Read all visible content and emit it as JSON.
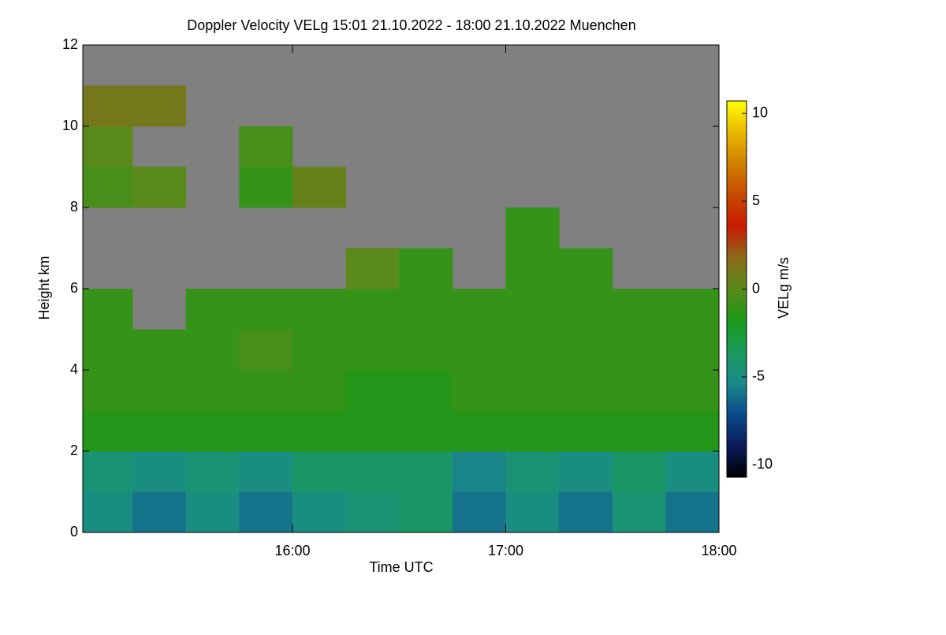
{
  "chart_data": {
    "type": "heatmap",
    "title": "Doppler Velocity VELg   15:01 21.10.2022 - 18:00 21.10.2022 Muenchen",
    "xlabel": "Time UTC",
    "ylabel": "Height km",
    "colorbar_label": "VELg m/s",
    "xlim": [
      15.0167,
      18.0
    ],
    "xticks": [
      {
        "value": 16,
        "label": "16:00"
      },
      {
        "value": 17,
        "label": "17:00"
      },
      {
        "value": 18,
        "label": "18:00"
      }
    ],
    "ylim": [
      0,
      12
    ],
    "yticks": [
      0,
      2,
      4,
      6,
      8,
      10,
      12
    ],
    "clim": [
      -10.7,
      10.7
    ],
    "cticks": [
      -10,
      -5,
      0,
      5,
      10
    ],
    "colormap": [
      "#000000",
      "#0a1a5a",
      "#0a4a8a",
      "#1a8a8a",
      "#1a9a5a",
      "#1a9a1a",
      "#5a8a1a",
      "#8a6a1a",
      "#c81a00",
      "#c84a00",
      "#d08000",
      "#e8b800",
      "#ffff00"
    ],
    "missing_color": "#808080",
    "xbins": [
      15.0167,
      15.25,
      15.5,
      15.75,
      16.0,
      16.25,
      16.5,
      16.75,
      17.0,
      17.25,
      17.5,
      17.75,
      18.0
    ],
    "ybins": [
      0,
      1,
      2,
      3,
      4,
      5,
      6,
      7,
      8,
      9,
      10,
      11,
      12
    ],
    "values": [
      [
        -5,
        -6,
        -5,
        -6,
        -5,
        -4.5,
        -4,
        -6,
        -5,
        -6,
        -4.5,
        -6
      ],
      [
        -4.5,
        -5,
        -4.5,
        -5,
        -4,
        -4,
        -4,
        -5.5,
        -4.5,
        -5,
        -4,
        -5
      ],
      [
        -1.5,
        -1.5,
        -1.5,
        -1.5,
        -1.5,
        -1.5,
        -1.5,
        -1.5,
        -1.5,
        -1.5,
        -1.5,
        -1.5
      ],
      [
        -1,
        -1,
        -1,
        -1,
        -1,
        -1.5,
        -1.5,
        -1,
        -1,
        -1,
        -1,
        -1
      ],
      [
        -1,
        -1,
        -1,
        -0.5,
        -1,
        -1,
        -1,
        -1,
        -1,
        -1,
        -1,
        -1
      ],
      [
        -1,
        null,
        -1,
        -1,
        -1,
        -1,
        -1,
        -1,
        -1,
        -1,
        -1,
        -1
      ],
      [
        null,
        null,
        null,
        null,
        null,
        0,
        -1,
        null,
        -1,
        -1,
        null,
        null
      ],
      [
        null,
        null,
        null,
        null,
        null,
        null,
        null,
        null,
        -1,
        null,
        null,
        null
      ],
      [
        -0.5,
        0,
        null,
        -1,
        0.5,
        null,
        null,
        null,
        null,
        null,
        null,
        null
      ],
      [
        0,
        null,
        null,
        -0.5,
        null,
        null,
        null,
        null,
        null,
        null,
        null,
        null
      ],
      [
        1,
        1,
        null,
        null,
        null,
        null,
        null,
        null,
        null,
        null,
        null,
        null
      ],
      [
        null,
        null,
        null,
        null,
        null,
        null,
        null,
        null,
        null,
        null,
        null,
        null
      ]
    ]
  }
}
